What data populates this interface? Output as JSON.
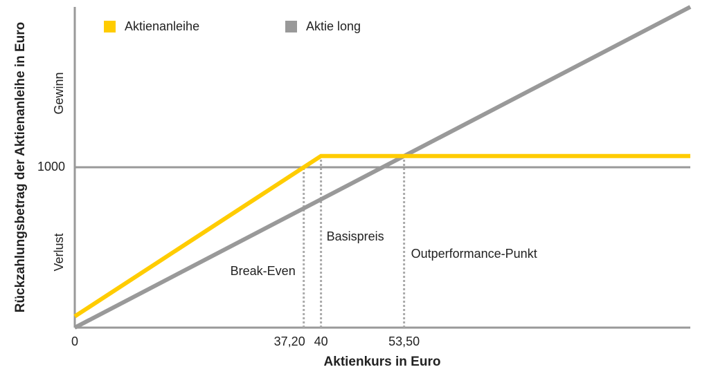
{
  "chart_data": {
    "type": "line",
    "x_label": "Aktienkurs in Euro",
    "y_label": "Rückzahlungsbetrag der Aktienanleihe in Euro",
    "gain_label": "Gewinn",
    "loss_label": "Verlust",
    "series": [
      {
        "name": "Aktienanleihe",
        "color": "#ffcc00",
        "x": [
          0,
          40,
          100
        ],
        "values": [
          70,
          1070,
          1070
        ]
      },
      {
        "name": "Aktie long",
        "color": "#999999",
        "x": [
          0,
          100
        ],
        "values": [
          0,
          2000
        ]
      }
    ],
    "annotations": [
      {
        "text": "Break-Even",
        "x": 37.2,
        "y": 1000
      },
      {
        "text": "Basispreis",
        "x": 40,
        "y": 1070
      },
      {
        "text": "Outperformance-Punkt",
        "x": 53.5,
        "y": 1070
      }
    ],
    "xlim": [
      0,
      100
    ],
    "ylim": [
      0,
      2000
    ],
    "xticks": [
      0,
      {
        "value": 37.2,
        "label": "37,20"
      },
      40,
      {
        "value": 53.5,
        "label": "53,50"
      }
    ],
    "yticks": [
      1000
    ],
    "grid": true,
    "legend": "top-left"
  }
}
